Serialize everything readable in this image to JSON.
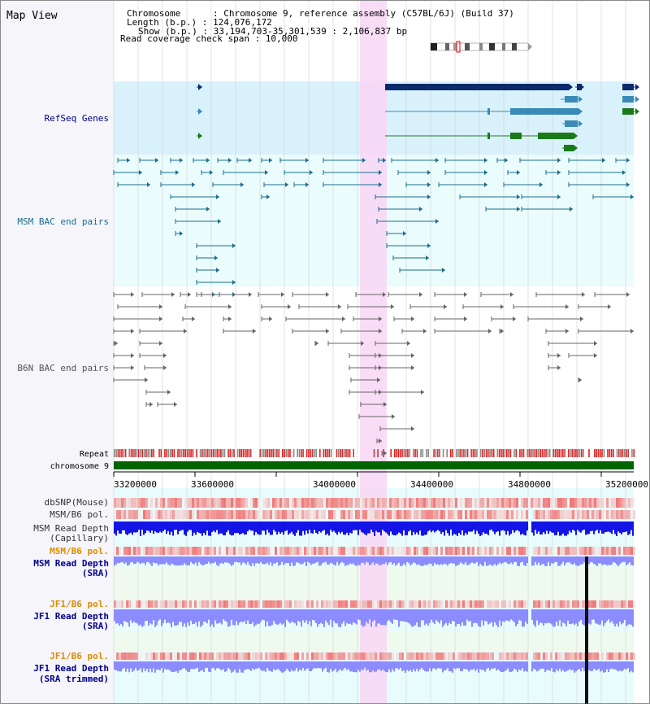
{
  "header": {
    "view_title": "Map View",
    "info_lines": [
      "Chromosome      : Chromosome 9, reference assembly (C57BL/6J) (Build 37)",
      "Length (b.p.) : 124,076,172",
      "Show (b.p.) : 33,194,703-35,301,539 : 2,106,837 bp",
      "Read coverage check span : 10,000"
    ]
  },
  "tracks": {
    "refseq_label": "RefSeq Genes",
    "msm_bac_label": "MSM BAC end pairs",
    "b6n_bac_label": "B6N BAC end pairs",
    "repeat_label": "Repeat",
    "chromosome_label": "chromosome 9",
    "dbsnp_label": "dbSNP(Mouse)",
    "msm_b6_pol_label": "MSM/B6 pol.",
    "msm_depth_cap_label_1": "MSM Read Depth",
    "msm_depth_cap_label_2": "(Capillary)",
    "msm_b6_pol2_label": "MSM/B6 pol.",
    "msm_depth_sra_label_1": "MSM Read Depth",
    "msm_depth_sra_label_2": "(SRA)",
    "jf1_b6_pol_label": "JF1/B6 pol.",
    "jf1_depth_sra_label_1": "JF1 Read Depth",
    "jf1_depth_sra_label_2": "(SRA)",
    "jf1_b6_pol2_label": "JF1/B6 pol.",
    "jf1_depth_trim_label_1": "JF1 Read Depth",
    "jf1_depth_trim_label_2": "(SRA trimmed)"
  },
  "ruler": {
    "ticks": [
      "33200000",
      "33600000",
      "34000000",
      "34400000",
      "34800000",
      "35200000"
    ]
  },
  "colors": {
    "refseq_bg": "#d9f1fb",
    "highlight": "#f8d6f5",
    "label_blue": "#00008b",
    "label_teal": "#1a6e8e",
    "label_orange": "#e08a00",
    "gene_navy": "#0b2a6b",
    "gene_steel": "#3a8ab8",
    "gene_green": "#1a7a1a",
    "bac_teal": "#1a6e8e",
    "bac_gray": "#666666",
    "chrom_green": "#006400",
    "depth_blue": "#1414e6",
    "depth_light": "#8c8cff",
    "pol_red": "#e02020"
  }
}
